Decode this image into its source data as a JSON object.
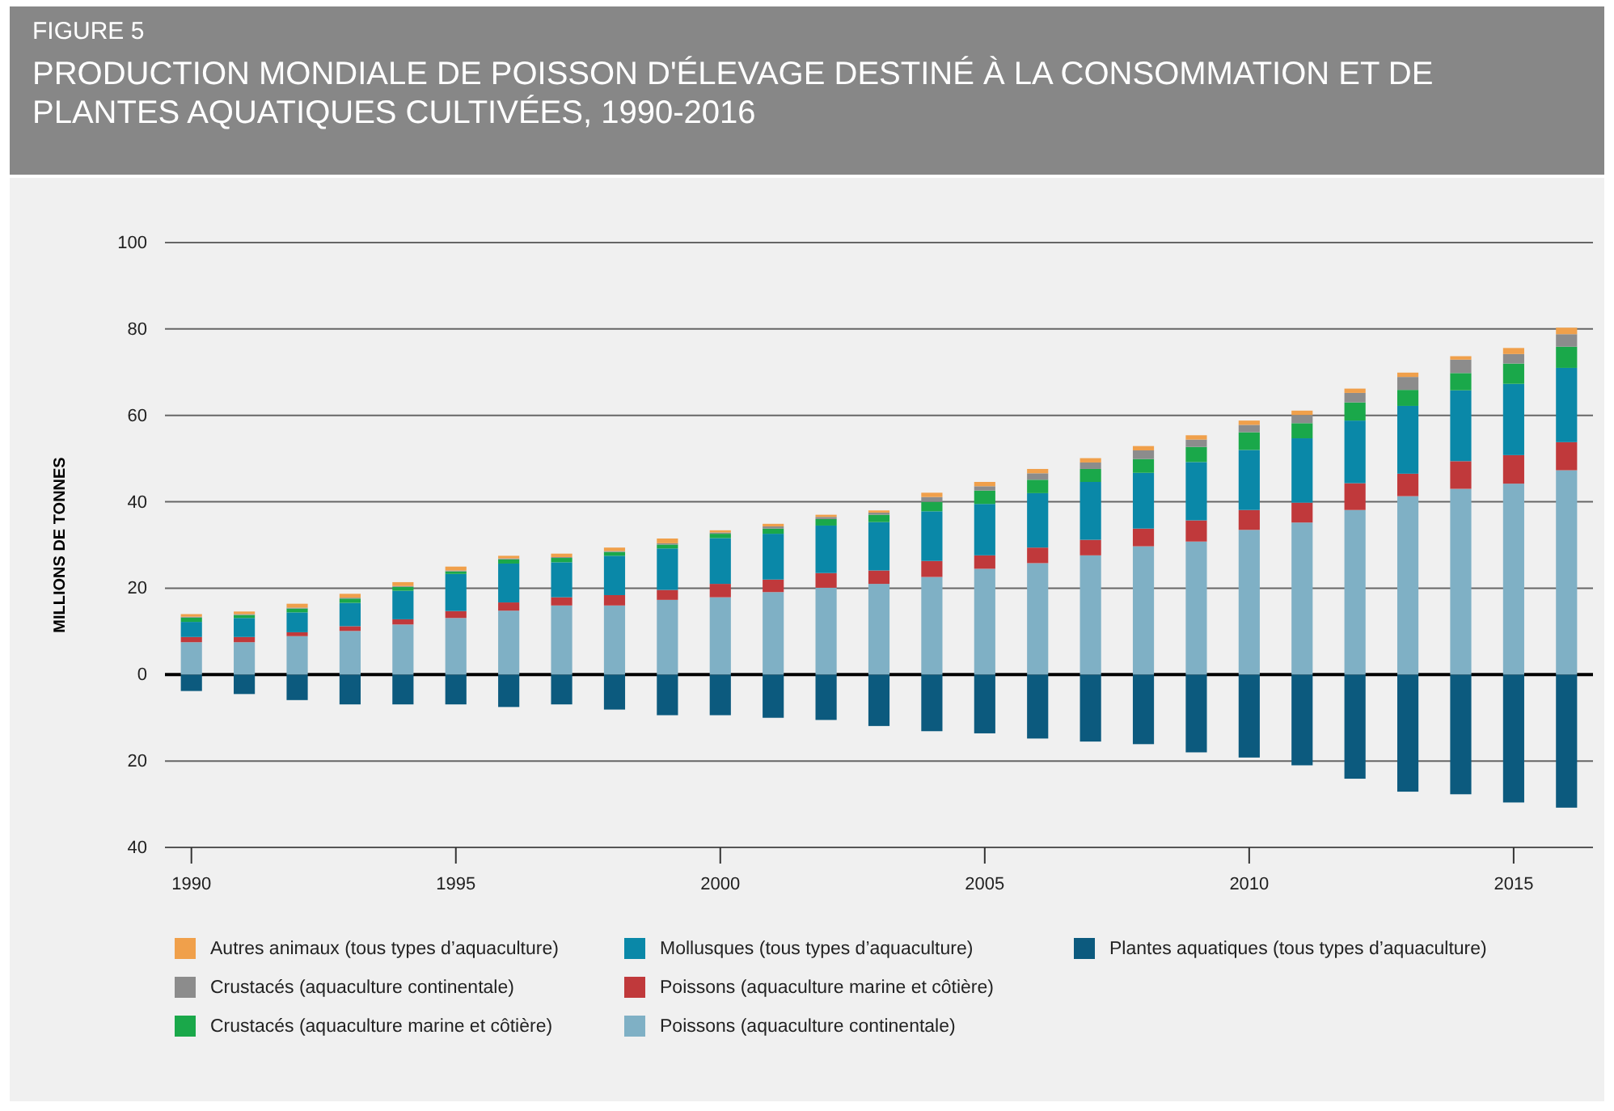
{
  "chart_data": {
    "type": "bar",
    "stacked": true,
    "title": "FIGURE 5",
    "subtitle": "PRODUCTION MONDIALE DE POISSON D'ÉLEVAGE DESTINÉ À LA CONSOMMATION ET DE PLANTES AQUATIQUES CULTIVÉES, 1990-2016",
    "ylabel": "MILLIONS DE TONNES",
    "x": [
      1990,
      1991,
      1992,
      1993,
      1994,
      1995,
      1996,
      1997,
      1998,
      1999,
      2000,
      2001,
      2002,
      2003,
      2004,
      2005,
      2006,
      2007,
      2008,
      2009,
      2010,
      2011,
      2012,
      2013,
      2014,
      2015,
      2016
    ],
    "xlim": [
      1989.5,
      2016.5
    ],
    "xticks": [
      1990,
      1995,
      2000,
      2005,
      2010,
      2015
    ],
    "ylim": [
      -40,
      100
    ],
    "yticks": [
      {
        "value": -40,
        "label": "40"
      },
      {
        "value": -20,
        "label": "20"
      },
      0,
      20,
      40,
      60,
      80,
      100
    ],
    "grid": "y",
    "legend": "bottom",
    "series": [
      {
        "name": "Plantes aquatiques (tous types d’aquaculture)",
        "color": "#0c5a7e",
        "values": [
          -3.8,
          -4.5,
          -5.9,
          -6.9,
          -6.9,
          -6.9,
          -7.5,
          -6.9,
          -8.1,
          -9.4,
          -9.4,
          -10,
          -10.5,
          -11.9,
          -13.1,
          -13.6,
          -14.8,
          -15.5,
          -16.1,
          -18,
          -19.2,
          -21,
          -24.1,
          -27.1,
          -27.7,
          -29.6,
          -30.8
        ]
      },
      {
        "name": "Poissons (aquaculture continentale)",
        "color": "#7fb0c5",
        "values": [
          7.5,
          7.5,
          8.9,
          10.1,
          11.6,
          13.1,
          14.8,
          16,
          16,
          17.3,
          17.9,
          19.1,
          20.1,
          21,
          22.6,
          24.5,
          25.8,
          27.6,
          29.7,
          30.8,
          33.5,
          35.2,
          38.1,
          41.3,
          43,
          44.2,
          47.3
        ]
      },
      {
        "name": "Poissons (aquaculture marine et côtière)",
        "color": "#c0393b",
        "values": [
          1.2,
          1.2,
          0.9,
          1.1,
          1.2,
          1.6,
          1.9,
          1.9,
          2.4,
          2.3,
          3.1,
          2.9,
          3.4,
          3.1,
          3.7,
          3.1,
          3.6,
          3.6,
          4.1,
          4.9,
          4.6,
          4.6,
          6.2,
          5.2,
          6.4,
          6.6,
          6.5
        ]
      },
      {
        "name": "Mollusques (tous types d’aquaculture)",
        "color": "#0a88a8",
        "values": [
          3.5,
          4.4,
          4.6,
          5.4,
          6.6,
          8.6,
          9,
          8.1,
          9.1,
          9.6,
          10.6,
          10.6,
          11,
          11.2,
          11.5,
          11.9,
          12.6,
          13.4,
          12.9,
          13.5,
          13.9,
          14.9,
          14.5,
          15.7,
          16.4,
          16.5,
          17.2
        ]
      },
      {
        "name": "Crustacés (aquaculture marine et côtière)",
        "color": "#1aa84a",
        "values": [
          1,
          0.7,
          0.9,
          1,
          0.9,
          0.6,
          1,
          1,
          0.9,
          0.9,
          1,
          1.2,
          1.5,
          1.7,
          2.2,
          3.1,
          3.1,
          3,
          3.2,
          3.5,
          4.1,
          3.5,
          4.2,
          3.7,
          4,
          4.7,
          4.9
        ]
      },
      {
        "name": "Crustacés (aquaculture continentale)",
        "color": "#8c8c8c",
        "values": [
          0.2,
          0.2,
          0.2,
          0.2,
          0.2,
          0.2,
          0.2,
          0.2,
          0.2,
          0.3,
          0.3,
          0.5,
          0.5,
          0.5,
          1.1,
          1,
          1.5,
          1.5,
          2,
          1.7,
          1.7,
          1.9,
          2.2,
          3,
          3.1,
          2.2,
          2.9
        ]
      },
      {
        "name": "Autres animaux (tous types d’aquaculture)",
        "color": "#f0a04b",
        "values": [
          0.6,
          0.6,
          0.9,
          0.9,
          0.9,
          0.9,
          0.6,
          0.8,
          0.8,
          1.1,
          0.5,
          0.6,
          0.5,
          0.5,
          1,
          1,
          1,
          1,
          1,
          1,
          1,
          1,
          1,
          1,
          0.8,
          1.4,
          1.5
        ]
      }
    ]
  }
}
